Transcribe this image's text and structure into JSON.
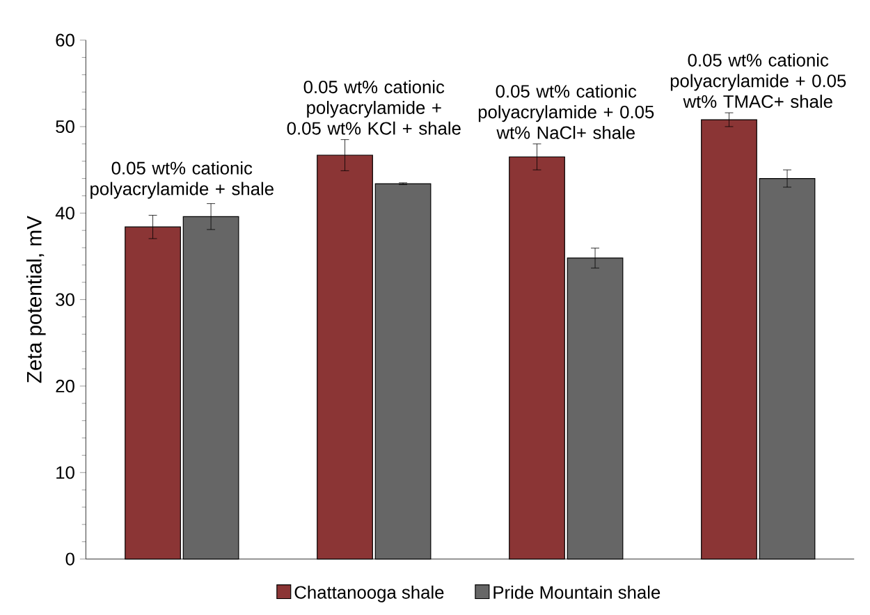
{
  "chart_data": {
    "type": "bar",
    "ylabel": "Zeta potential, mV",
    "categories": [
      "0.05 wt% cationic polyacrylamide + shale",
      "0.05 wt% cationic polyacrylamide + 0.05 wt% KCl + shale",
      "0.05 wt% cationic polyacrylamide + 0.05 wt% NaCl+ shale",
      "0.05 wt% cationic polyacrylamide + 0.05 wt% TMAC+ shale"
    ],
    "series": [
      {
        "name": "Chattanooga shale",
        "color": "#8b3535",
        "values": [
          38.4,
          46.7,
          46.5,
          50.8
        ],
        "errors": [
          1.35,
          1.8,
          1.5,
          0.8
        ]
      },
      {
        "name": "Pride Mountain shale",
        "color": "#666666",
        "values": [
          39.6,
          43.4,
          34.8,
          44.0
        ],
        "errors": [
          1.5,
          0.1,
          1.15,
          1.0
        ]
      }
    ],
    "ylim": [
      0,
      60
    ],
    "yticks": [
      0,
      10,
      20,
      30,
      40,
      50,
      60
    ],
    "grid": false,
    "legend": "bottom"
  }
}
